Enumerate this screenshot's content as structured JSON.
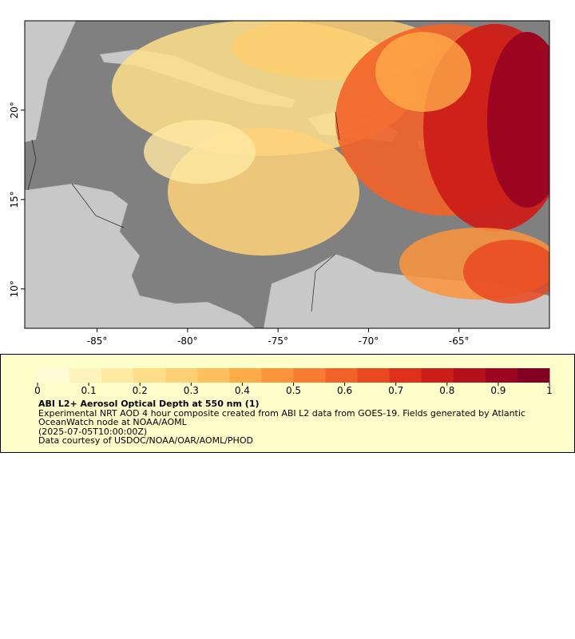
{
  "map": {
    "xlim": [
      -89,
      -60
    ],
    "ylim": [
      7.8,
      25
    ],
    "xticks": [
      {
        "value": -85,
        "label": "-85°"
      },
      {
        "value": -80,
        "label": "-80°"
      },
      {
        "value": -75,
        "label": "-75°"
      },
      {
        "value": -70,
        "label": "-70°"
      },
      {
        "value": -65,
        "label": "-65°"
      }
    ],
    "yticks": [
      {
        "value": 10,
        "label": "10°"
      },
      {
        "value": 15,
        "label": "15°"
      },
      {
        "value": 20,
        "label": "20°"
      }
    ]
  },
  "colorbar": {
    "lim": [
      0,
      1
    ],
    "ticks": [
      0,
      0.1,
      0.2,
      0.3,
      0.4,
      0.5,
      0.6,
      0.7,
      0.8,
      0.9,
      1
    ],
    "colors": [
      "#fffbd6",
      "#fff3bd",
      "#ffe9a3",
      "#ffdd8a",
      "#ffd073",
      "#ffbf5c",
      "#ffab4a",
      "#fc943c",
      "#f87c31",
      "#f26228",
      "#e94820",
      "#dd311b",
      "#cc1e19",
      "#b6101c",
      "#9c0620",
      "#820023"
    ]
  },
  "legend": {
    "title": "ABI L2+ Aerosol Optical Depth at 550 nm (1)",
    "description": "Experimental NRT AOD 4 hour composite created from ABI L2 data from GOES-19. Fields generated by Atlantic OceanWatch node at NOAA/AOML",
    "time": "(2025-07-05T10:00:00Z)",
    "credit": "Data courtesy of USDOC/NOAA/OAR/AOML/PHOD"
  }
}
